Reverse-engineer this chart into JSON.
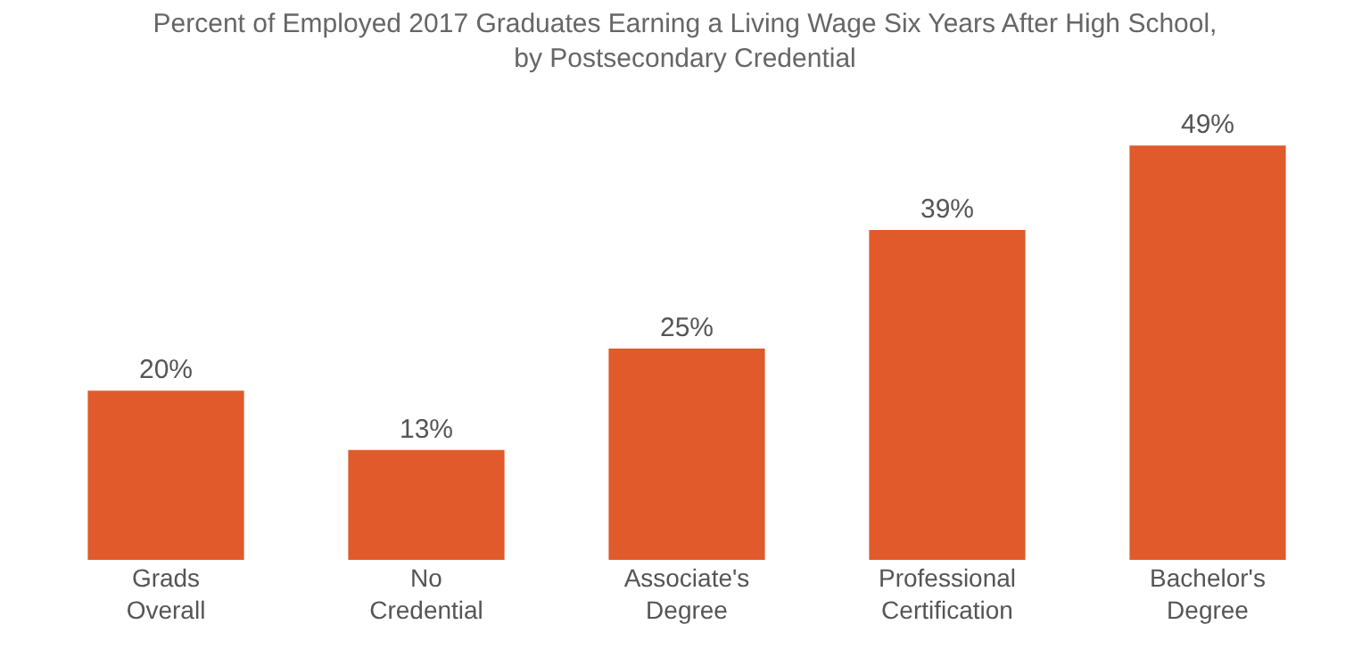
{
  "chart_data": {
    "type": "bar",
    "title": "Percent of Employed 2017 Graduates Earning a Living Wage Six Years After High School,\nby Postsecondary Credential",
    "categories": [
      "Grads\nOverall",
      "No\nCredential",
      "Associate's\nDegree",
      "Professional\nCertification",
      "Bachelor's\nDegree"
    ],
    "values": [
      20,
      13,
      25,
      39,
      49
    ],
    "value_labels": [
      "20%",
      "13%",
      "25%",
      "39%",
      "49%"
    ],
    "color": "#e05a2b"
  }
}
